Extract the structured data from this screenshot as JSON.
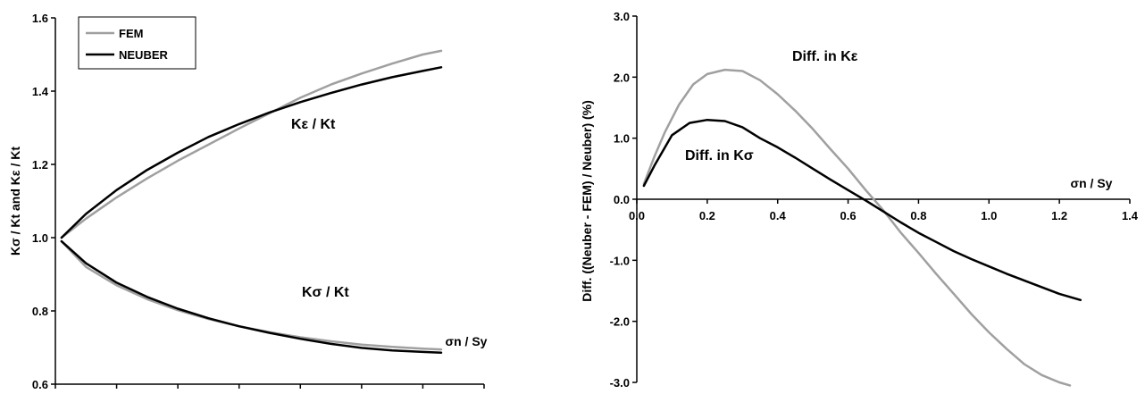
{
  "chart_data": [
    {
      "type": "line",
      "ylabel": "Kσ / Kt  and   Kε / Kt",
      "xlim": [
        0.0,
        1.4
      ],
      "ylim": [
        0.6,
        1.6
      ],
      "xticks": [
        "0.0",
        "0.2",
        "0.4",
        "0.6",
        "0.8",
        "1.0",
        "1.2",
        "1.4"
      ],
      "yticks": [
        "0.6",
        "0.8",
        "1.0",
        "1.2",
        "1.4",
        "1.6"
      ],
      "grid": false,
      "legend": {
        "placement": "top-left",
        "entries": [
          "FEM",
          "NEUBER"
        ]
      },
      "annotations": [
        "Kε / Kt",
        "Kσ / Kt",
        "σn / Sy"
      ],
      "series": [
        {
          "name": "FEM",
          "color": "#a0a0a0",
          "group": "Kε / Kt",
          "x": [
            0.02,
            0.1,
            0.2,
            0.3,
            0.4,
            0.5,
            0.6,
            0.7,
            0.8,
            0.9,
            1.0,
            1.1,
            1.2,
            1.26
          ],
          "y": [
            1.0,
            1.052,
            1.11,
            1.162,
            1.21,
            1.254,
            1.298,
            1.34,
            1.382,
            1.418,
            1.448,
            1.475,
            1.5,
            1.51
          ]
        },
        {
          "name": "NEUBER",
          "color": "#000000",
          "group": "Kε / Kt",
          "x": [
            0.02,
            0.1,
            0.2,
            0.3,
            0.4,
            0.5,
            0.6,
            0.7,
            0.8,
            0.9,
            1.0,
            1.1,
            1.2,
            1.26
          ],
          "y": [
            1.0,
            1.065,
            1.13,
            1.185,
            1.232,
            1.275,
            1.31,
            1.342,
            1.37,
            1.395,
            1.418,
            1.438,
            1.455,
            1.465
          ]
        },
        {
          "name": "FEM",
          "color": "#a0a0a0",
          "group": "Kσ / Kt",
          "x": [
            0.02,
            0.1,
            0.2,
            0.3,
            0.4,
            0.5,
            0.6,
            0.7,
            0.8,
            0.9,
            1.0,
            1.1,
            1.2,
            1.26
          ],
          "y": [
            0.99,
            0.92,
            0.87,
            0.832,
            0.802,
            0.778,
            0.758,
            0.742,
            0.728,
            0.717,
            0.708,
            0.702,
            0.697,
            0.695
          ]
        },
        {
          "name": "NEUBER",
          "color": "#000000",
          "group": "Kσ / Kt",
          "x": [
            0.02,
            0.1,
            0.2,
            0.3,
            0.4,
            0.5,
            0.6,
            0.7,
            0.8,
            0.9,
            1.0,
            1.1,
            1.2,
            1.26
          ],
          "y": [
            0.99,
            0.93,
            0.877,
            0.838,
            0.806,
            0.78,
            0.758,
            0.74,
            0.724,
            0.71,
            0.699,
            0.692,
            0.688,
            0.686
          ]
        }
      ]
    },
    {
      "type": "line",
      "ylabel": "Diff. ((Neuber - FEM) / Neuber) (%)",
      "xlim": [
        0.0,
        1.4
      ],
      "ylim": [
        -3.0,
        3.0
      ],
      "xticks": [
        "0.0",
        "0.2",
        "0.4",
        "0.6",
        "0.8",
        "1.0",
        "1.2",
        "1.4"
      ],
      "yticks": [
        "3.0",
        "2.0",
        "1.0",
        "0.0",
        "-1.0",
        "-2.0",
        "-3.0"
      ],
      "grid": false,
      "annotations": [
        "Diff. in Kε",
        "Diff. in Kσ",
        "σn / Sy"
      ],
      "series": [
        {
          "name": "Diff. in Kε",
          "color": "#a0a0a0",
          "x": [
            0.02,
            0.05,
            0.08,
            0.12,
            0.16,
            0.2,
            0.25,
            0.3,
            0.35,
            0.4,
            0.45,
            0.5,
            0.55,
            0.6,
            0.65,
            0.7,
            0.75,
            0.8,
            0.85,
            0.9,
            0.95,
            1.0,
            1.05,
            1.1,
            1.15,
            1.2,
            1.23
          ],
          "y": [
            0.25,
            0.7,
            1.1,
            1.55,
            1.88,
            2.05,
            2.12,
            2.1,
            1.95,
            1.72,
            1.45,
            1.15,
            0.82,
            0.5,
            0.15,
            -0.18,
            -0.55,
            -0.88,
            -1.22,
            -1.55,
            -1.88,
            -2.18,
            -2.45,
            -2.7,
            -2.88,
            -3.0,
            -3.05
          ]
        },
        {
          "name": "Diff. in Kσ",
          "color": "#000000",
          "x": [
            0.02,
            0.05,
            0.1,
            0.15,
            0.2,
            0.25,
            0.3,
            0.35,
            0.4,
            0.45,
            0.5,
            0.55,
            0.6,
            0.65,
            0.7,
            0.75,
            0.8,
            0.85,
            0.9,
            0.95,
            1.0,
            1.05,
            1.1,
            1.15,
            1.2,
            1.26
          ],
          "y": [
            0.22,
            0.55,
            1.05,
            1.25,
            1.3,
            1.28,
            1.18,
            1.0,
            0.85,
            0.68,
            0.5,
            0.32,
            0.15,
            -0.02,
            -0.2,
            -0.38,
            -0.55,
            -0.7,
            -0.85,
            -0.98,
            -1.1,
            -1.22,
            -1.33,
            -1.44,
            -1.55,
            -1.65
          ]
        }
      ]
    }
  ]
}
